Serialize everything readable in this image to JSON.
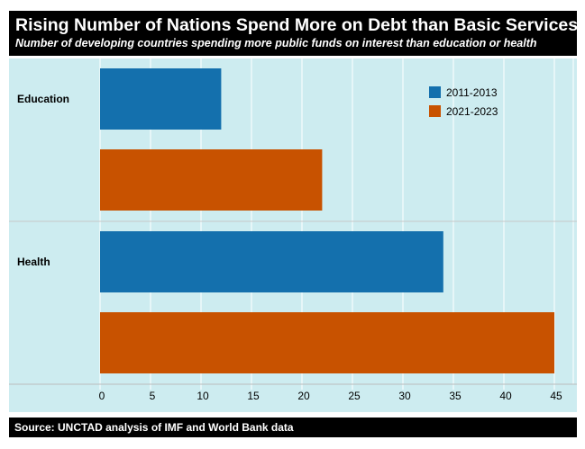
{
  "chart_data": {
    "type": "bar",
    "orientation": "horizontal",
    "title": "Rising Number of Nations Spend More on Debt than Basic Services",
    "subtitle": "Number of developing countries spending more public funds on interest than education or health",
    "source": "Source: UNCTAD analysis of IMF and World Bank data",
    "categories": [
      "Education",
      "Health"
    ],
    "series": [
      {
        "name": "2011-2013",
        "color": "#1470ad",
        "values": [
          12,
          34
        ]
      },
      {
        "name": "2021-2023",
        "color": "#c85200",
        "values": [
          22,
          45
        ]
      }
    ],
    "xlim": [
      0,
      45
    ],
    "xticks": [
      0,
      5,
      10,
      15,
      20,
      25,
      30,
      35,
      40,
      45
    ],
    "grid": true,
    "legend": "top-right",
    "background": "#cdecf0"
  }
}
